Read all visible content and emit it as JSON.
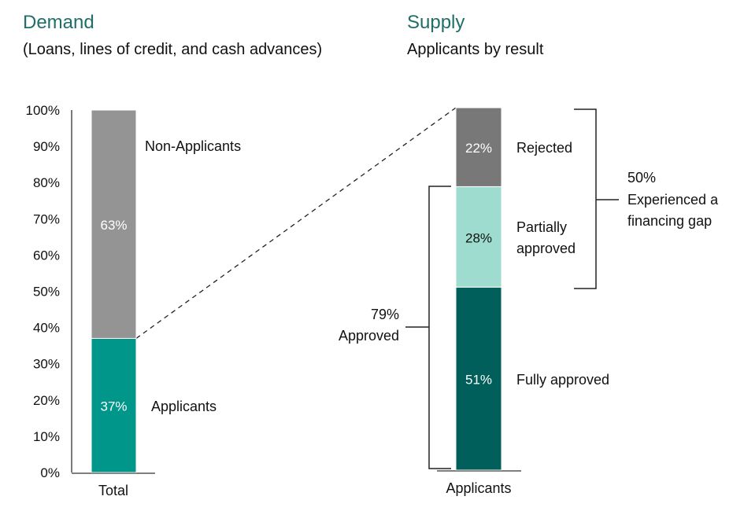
{
  "colors": {
    "title": "#1f6f68",
    "non_applicants": "#949494",
    "applicants": "#00968a",
    "rejected": "#787878",
    "partially_approved": "#9edccf",
    "fully_approved": "#005f5a"
  },
  "chart_data": [
    {
      "type": "bar",
      "stacked": true,
      "title": "Demand",
      "subtitle": "(Loans, lines of credit, and cash advances)",
      "categories": [
        "Total"
      ],
      "ylim": [
        0,
        100
      ],
      "yticks": [
        "0%",
        "10%",
        "20%",
        "30%",
        "40%",
        "50%",
        "60%",
        "70%",
        "80%",
        "90%",
        "100%"
      ],
      "series": [
        {
          "name": "Applicants",
          "values": [
            37
          ],
          "label": "37%"
        },
        {
          "name": "Non-Applicants",
          "values": [
            63
          ],
          "label": "63%"
        }
      ]
    },
    {
      "type": "bar",
      "stacked": true,
      "title": "Supply",
      "subtitle": "Applicants by result",
      "categories": [
        "Applicants"
      ],
      "ylim": [
        0,
        100
      ],
      "series": [
        {
          "name": "Fully approved",
          "values": [
            51
          ],
          "label": "51%"
        },
        {
          "name": "Partially approved",
          "label_lines": [
            "Partially",
            "approved"
          ],
          "values": [
            28
          ],
          "label": "28%"
        },
        {
          "name": "Rejected",
          "values": [
            22
          ],
          "label": "22%"
        }
      ],
      "annotations": [
        {
          "value": "50%",
          "lines": [
            "Experienced a",
            "financing gap"
          ],
          "spans": [
            "Rejected",
            "Partially approved"
          ]
        },
        {
          "value": "79%",
          "lines": [
            "Approved"
          ],
          "spans": [
            "Partially approved",
            "Fully approved"
          ]
        }
      ]
    }
  ]
}
